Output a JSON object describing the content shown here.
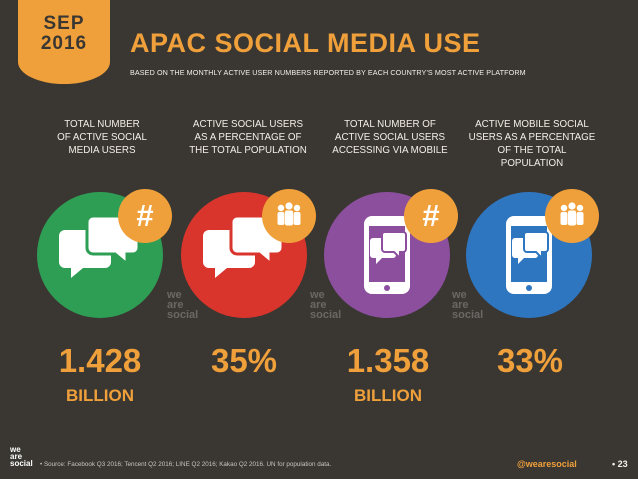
{
  "badge": {
    "month": "SEP",
    "year": "2016"
  },
  "header": {
    "title": "APAC SOCIAL MEDIA USE",
    "subtitle": "BASED ON THE MONTHLY ACTIVE USER NUMBERS REPORTED BY EACH COUNTRY'S MOST ACTIVE PLATFORM"
  },
  "columns": [
    {
      "label_lines": [
        "TOTAL NUMBER",
        "OF ACTIVE SOCIAL",
        "MEDIA USERS"
      ],
      "value": "1.428",
      "unit": "BILLION",
      "badge_icon": "hash-icon",
      "main_icon": "chat-bubbles-icon",
      "color": "#2f9e55"
    },
    {
      "label_lines": [
        "ACTIVE SOCIAL USERS",
        "AS A PERCENTAGE OF",
        "THE TOTAL POPULATION"
      ],
      "value": "35%",
      "unit": "",
      "badge_icon": "people-icon",
      "main_icon": "chat-bubbles-icon",
      "color": "#d9352c"
    },
    {
      "label_lines": [
        "TOTAL NUMBER OF",
        "ACTIVE SOCIAL USERS",
        "ACCESSING VIA MOBILE"
      ],
      "value": "1.358",
      "unit": "BILLION",
      "badge_icon": "hash-icon",
      "main_icon": "mobile-chat-icon",
      "color": "#8c4f9e"
    },
    {
      "label_lines": [
        "ACTIVE MOBILE SOCIAL",
        "USERS AS A PERCENTAGE",
        "OF THE TOTAL POPULATION"
      ],
      "value": "33%",
      "unit": "",
      "badge_icon": "people-icon",
      "main_icon": "mobile-chat-icon",
      "color": "#2f76c1"
    }
  ],
  "watermark": {
    "lines": [
      "we",
      "are",
      "social"
    ]
  },
  "footer": {
    "logo_lines": [
      "we",
      "are",
      "social"
    ],
    "source": "• Source: Facebook Q3 2016; Tencent Q2 2016; LINE Q2 2016; Kakao Q2 2016. UN for population data.",
    "handle": "@wearesocial",
    "page": "• 23"
  },
  "colors": {
    "accent": "#f0a03a",
    "background": "#3a3733"
  }
}
